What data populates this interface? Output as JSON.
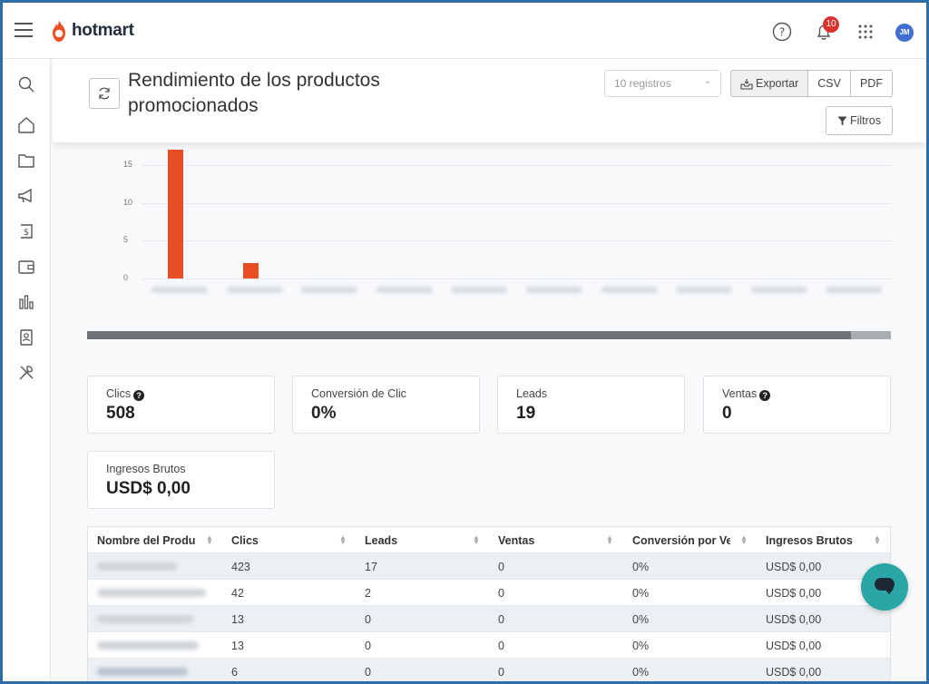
{
  "app": {
    "brand": "hotmart",
    "notifications_count": "10",
    "user_initials": "JM"
  },
  "header": {
    "title": "Rendimiento de los productos promocionados",
    "records_select": "10 registros",
    "export_label": "Exportar",
    "csv_label": "CSV",
    "pdf_label": "PDF",
    "filters_label": "Filtros"
  },
  "chart_data": {
    "type": "bar",
    "categories": [
      "",
      "",
      "",
      "",
      "",
      "",
      "",
      "",
      "",
      ""
    ],
    "values": [
      17,
      2,
      0,
      0,
      0,
      0,
      0,
      0,
      0,
      0
    ],
    "yticks": [
      "0",
      "5",
      "10",
      "15"
    ],
    "ylim": [
      0,
      18
    ],
    "grid": true,
    "color": "#e94d24"
  },
  "kpis": [
    {
      "label": "Clics",
      "value": "508",
      "help": true
    },
    {
      "label": "Conversión de Clic",
      "value": "0%",
      "help": false
    },
    {
      "label": "Leads",
      "value": "19",
      "help": false
    },
    {
      "label": "Ventas",
      "value": "0",
      "help": true
    },
    {
      "label": "Ingresos Brutos",
      "value": "USD$ 0,00",
      "help": false
    }
  ],
  "table": {
    "columns": [
      "Nombre del Producto",
      "Clics",
      "Leads",
      "Ventas",
      "Conversión por Ventas",
      "Ingresos Brutos"
    ],
    "rows": [
      {
        "clics": "423",
        "leads": "17",
        "ventas": "0",
        "conv": "0%",
        "ingresos": "USD$ 0,00"
      },
      {
        "clics": "42",
        "leads": "2",
        "ventas": "0",
        "conv": "0%",
        "ingresos": "USD$ 0,00"
      },
      {
        "clics": "13",
        "leads": "0",
        "ventas": "0",
        "conv": "0%",
        "ingresos": "USD$ 0,00"
      },
      {
        "clics": "13",
        "leads": "0",
        "ventas": "0",
        "conv": "0%",
        "ingresos": "USD$ 0,00"
      },
      {
        "clics": "6",
        "leads": "0",
        "ventas": "0",
        "conv": "0%",
        "ingresos": "USD$ 0,00"
      }
    ]
  }
}
